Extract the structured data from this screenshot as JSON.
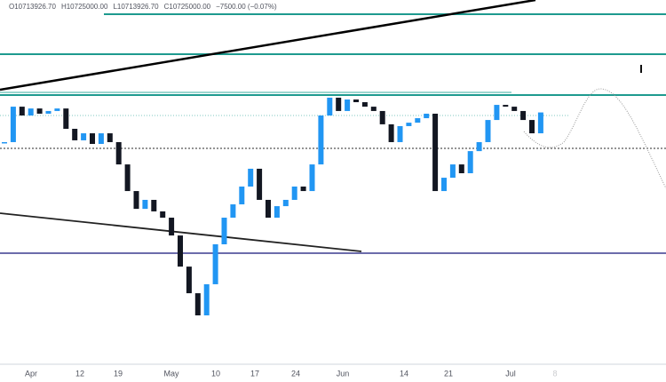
{
  "chart_data": {
    "type": "candlestick",
    "header": [
      "O10713926.70",
      "H10725000.00",
      "L10713926.70",
      "C10725000.00",
      "−7500.00 (−0.07%)"
    ],
    "x_labels": [
      "Apr",
      "12",
      "19",
      "May",
      "10",
      "17",
      "24",
      "Jun",
      "14",
      "21",
      "Jul",
      "8"
    ],
    "values": [
      10560000,
      10757000,
      10708000,
      10747000,
      10718000,
      10733000,
      10747000,
      10634000,
      10570000,
      10609000,
      10550000,
      10609000,
      10560000,
      10436000,
      10288000,
      10189000,
      10239000,
      10175000,
      10140000,
      10041000,
      9868000,
      9720000,
      9597000,
      9770000,
      9992000,
      10140000,
      10214000,
      10313000,
      10412000,
      10239000,
      10140000,
      10204000,
      10239000,
      10313000,
      10288000,
      10436000,
      10708000,
      10807000,
      10733000,
      10797000,
      10782000,
      10757000,
      10733000,
      10659000,
      10560000,
      10649000,
      10668000,
      10693000,
      10718000,
      10288000,
      10362000,
      10436000,
      10387000,
      10510000,
      10560000,
      10683000,
      10767000,
      10757000,
      10733000,
      10683000,
      10609000,
      10725000
    ],
    "up_color": "#2196f3",
    "down_color": "#131722",
    "ylim": [
      9350000,
      11350000
    ]
  }
}
